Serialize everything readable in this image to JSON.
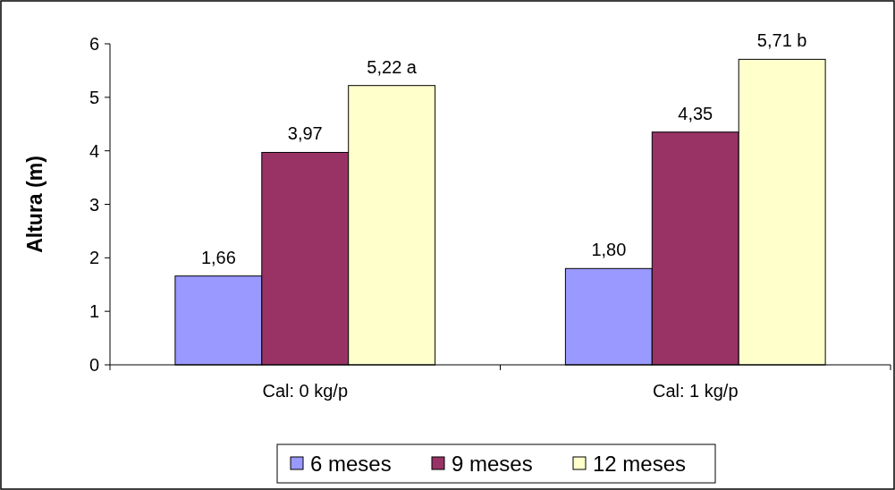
{
  "chart_data": {
    "type": "bar",
    "ylabel": "Altura (m)",
    "categories": [
      "Cal: 0 kg/p",
      "Cal: 1 kg/p"
    ],
    "series": [
      {
        "name": "6 meses",
        "color": "#9999ff",
        "values": [
          1.66,
          1.8
        ],
        "value_labels": [
          "1,66",
          "1,80"
        ]
      },
      {
        "name": "9 meses",
        "color": "#993366",
        "values": [
          3.97,
          4.35
        ],
        "value_labels": [
          "3,97",
          "4,35"
        ]
      },
      {
        "name": "12 meses",
        "color": "#ffffcc",
        "values": [
          5.22,
          5.71
        ],
        "value_labels": [
          "5,22 a",
          "5,71 b"
        ]
      }
    ],
    "ylim": [
      0,
      6
    ],
    "yticks": [
      0,
      1,
      2,
      3,
      4,
      5,
      6
    ],
    "legend": "bottom"
  }
}
